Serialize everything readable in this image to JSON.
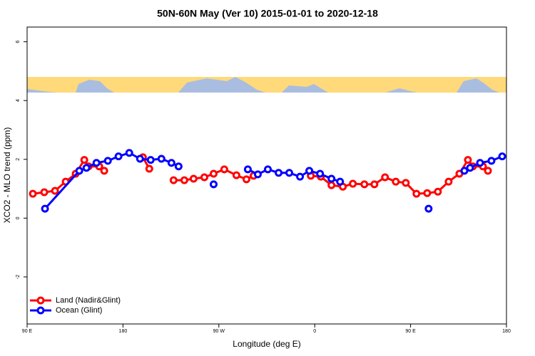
{
  "chart_data": {
    "type": "line",
    "title": "50N-60N May (Ver 10)   2015-01-01 to 2020-12-18",
    "x_label": "Longitude (deg E)",
    "y_label": "XCO2 - MLO trend (ppm)",
    "xlim": [
      90,
      540
    ],
    "ylim": [
      -3.6,
      6.5
    ],
    "xticks": [
      {
        "value": 90,
        "label": "90 E"
      },
      180,
      {
        "value": 270,
        "label": "90 W"
      },
      {
        "value": 360,
        "label": "0"
      },
      {
        "value": 450,
        "label": "90 E"
      },
      {
        "value": 540,
        "label": "180"
      }
    ],
    "yticks": [
      -2,
      0,
      2,
      4,
      6
    ],
    "legend": "bottom left",
    "series": [
      {
        "name": "Land (Nadir&Glint)",
        "color": "#ff0000",
        "x": [
          95.4,
          106.1,
          116.2,
          126.2,
          135.6,
          143.7,
          147.7,
          157.7,
          162.4,
          null,
          198.7,
          204.7,
          null,
          227.5,
          237.6,
          246.3,
          256.4,
          265.1,
          275.1,
          286.5,
          295.9,
          302.6,
          null,
          356.3,
          365.7,
          375.7,
          386.4,
          395.8,
          406.6,
          416.0,
          426.0,
          436.1,
          445.5,
          455.5,
          465.6,
          475.6,
          485.7,
          495.8,
          503.8,
          508.5,
          517.9,
          522.6
        ],
        "values": [
          0.83,
          0.88,
          0.93,
          1.24,
          1.51,
          1.98,
          1.76,
          1.76,
          1.61,
          null,
          2.07,
          1.68,
          null,
          1.29,
          1.29,
          1.34,
          1.39,
          1.51,
          1.66,
          1.46,
          1.32,
          1.44,
          null,
          1.44,
          1.41,
          1.12,
          1.07,
          1.17,
          1.15,
          1.15,
          1.39,
          1.24,
          1.2,
          0.83,
          0.85,
          0.9,
          1.24,
          1.51,
          1.98,
          1.76,
          1.76,
          1.61
        ]
      },
      {
        "name": "Ocean (Glint)",
        "color": "#0000ff",
        "x": [
          106.8,
          139.0,
          145.7,
          155.1,
          165.8,
          175.8,
          185.9,
          196.0,
          206.0,
          216.1,
          225.5,
          232.2,
          null,
          265.1,
          null,
          297.2,
          306.6,
          316.0,
          326.1,
          336.1,
          346.2,
          354.9,
          365.0,
          375.7,
          383.8,
          null,
          466.9,
          null,
          500.5,
          505.8,
          515.2,
          525.9,
          536.0
        ],
        "values": [
          0.32,
          1.61,
          1.71,
          1.88,
          1.95,
          2.1,
          2.22,
          2.02,
          1.98,
          2.02,
          1.88,
          1.76,
          null,
          1.15,
          null,
          1.66,
          1.49,
          1.66,
          1.54,
          1.54,
          1.41,
          1.61,
          1.51,
          1.34,
          1.24,
          null,
          0.32,
          null,
          1.61,
          1.71,
          1.88,
          1.95,
          2.1
        ]
      }
    ]
  }
}
